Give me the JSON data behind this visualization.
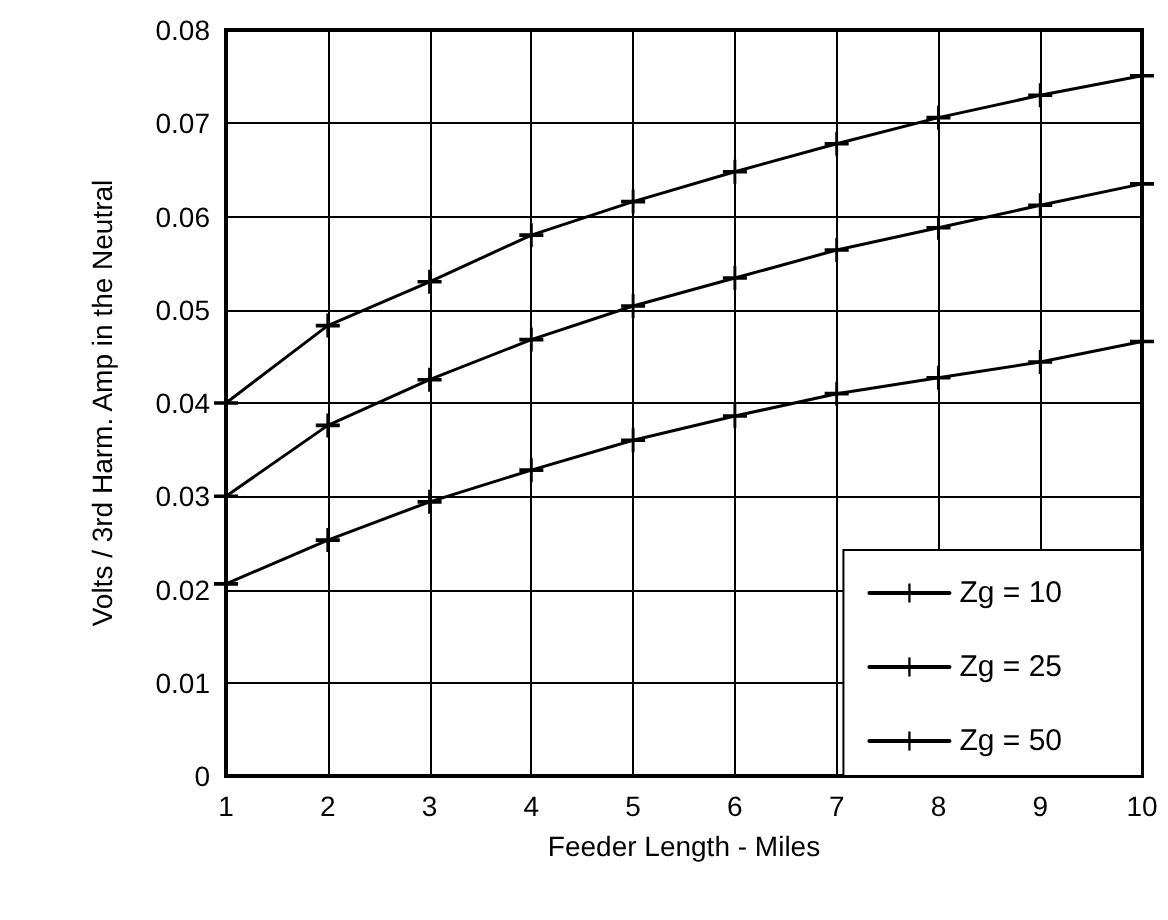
{
  "chart_data": {
    "type": "line",
    "xlabel": "Feeder Length - Miles",
    "ylabel": "Volts / 3rd Harm. Amp in the Neutral",
    "x": [
      1,
      2,
      3,
      4,
      5,
      6,
      7,
      8,
      9,
      10
    ],
    "series": [
      {
        "name": "Zg = 10",
        "color": "#000000",
        "values": [
          0.0206,
          0.0253,
          0.0294,
          0.0328,
          0.036,
          0.0386,
          0.041,
          0.0427,
          0.0444,
          0.0466
        ]
      },
      {
        "name": "Zg = 25",
        "color": "#000000",
        "values": [
          0.03,
          0.0376,
          0.0425,
          0.0468,
          0.0504,
          0.0534,
          0.0564,
          0.0588,
          0.0612,
          0.0635
        ]
      },
      {
        "name": "Zg = 50",
        "color": "#000000",
        "values": [
          0.04,
          0.0483,
          0.053,
          0.058,
          0.0616,
          0.0648,
          0.0678,
          0.0706,
          0.073,
          0.0751
        ]
      }
    ],
    "xlim": [
      1,
      10
    ],
    "xticks": [
      1,
      2,
      3,
      4,
      5,
      6,
      7,
      8,
      9,
      10
    ],
    "ylim": [
      0,
      0.08
    ],
    "yticks": [
      0,
      0.01,
      0.02,
      0.03,
      0.04,
      0.05,
      0.06,
      0.07,
      0.08
    ],
    "grid": true,
    "legend": "bottom right",
    "marker": "cross",
    "line_style": "solid"
  }
}
